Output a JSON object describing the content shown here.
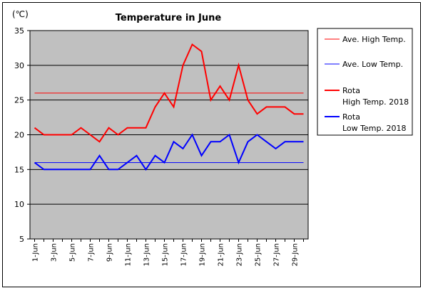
{
  "chart_data": {
    "type": "line",
    "title": "Temperature in June",
    "unit_label": "(℃)",
    "categories": [
      "1-Jun",
      "2-Jun",
      "3-Jun",
      "4-Jun",
      "5-Jun",
      "6-Jun",
      "7-Jun",
      "8-Jun",
      "9-Jun",
      "10-Jun",
      "11-Jun",
      "12-Jun",
      "13-Jun",
      "14-Jun",
      "15-Jun",
      "16-Jun",
      "17-Jun",
      "18-Jun",
      "19-Jun",
      "20-Jun",
      "21-Jun",
      "22-Jun",
      "23-Jun",
      "24-Jun",
      "25-Jun",
      "26-Jun",
      "27-Jun",
      "28-Jun",
      "29-Jun",
      "30-Jun"
    ],
    "tick_labels": [
      "1-Jun",
      "3-Jun",
      "5-Jun",
      "7-Jun",
      "9-Jun",
      "11-Jun",
      "13-Jun",
      "15-Jun",
      "17-Jun",
      "19-Jun",
      "21-Jun",
      "23-Jun",
      "25-Jun",
      "27-Jun",
      "29-Jun"
    ],
    "ylim": [
      5,
      35
    ],
    "yticks": [
      5,
      10,
      15,
      20,
      25,
      30,
      35
    ],
    "grid": true,
    "legend_position": "right",
    "series": [
      {
        "name": "Ave. High Temp.",
        "color": "#ff0000",
        "values": [
          26,
          26,
          26,
          26,
          26,
          26,
          26,
          26,
          26,
          26,
          26,
          26,
          26,
          26,
          26,
          26,
          26,
          26,
          26,
          26,
          26,
          26,
          26,
          26,
          26,
          26,
          26,
          26,
          26,
          26
        ]
      },
      {
        "name": "Ave. Low Temp.",
        "color": "#0000ff",
        "values": [
          16,
          16,
          16,
          16,
          16,
          16,
          16,
          16,
          16,
          16,
          16,
          16,
          16,
          16,
          16,
          16,
          16,
          16,
          16,
          16,
          16,
          16,
          16,
          16,
          16,
          16,
          16,
          16,
          16,
          16
        ]
      },
      {
        "name": "Rota\nHigh Temp. 2018",
        "color": "#ff0000",
        "values": [
          21,
          20,
          20,
          20,
          20,
          21,
          20,
          19,
          21,
          20,
          21,
          21,
          21,
          24,
          26,
          24,
          30,
          33,
          32,
          25,
          27,
          25,
          30,
          25,
          23,
          24,
          24,
          24,
          23,
          23
        ]
      },
      {
        "name": "Rota\nLow Temp. 2018",
        "color": "#0000ff",
        "values": [
          16,
          15,
          15,
          15,
          15,
          15,
          15,
          17,
          15,
          15,
          16,
          17,
          15,
          17,
          16,
          19,
          18,
          20,
          17,
          19,
          19,
          20,
          16,
          19,
          20,
          19,
          18,
          19,
          19,
          19
        ]
      }
    ]
  }
}
